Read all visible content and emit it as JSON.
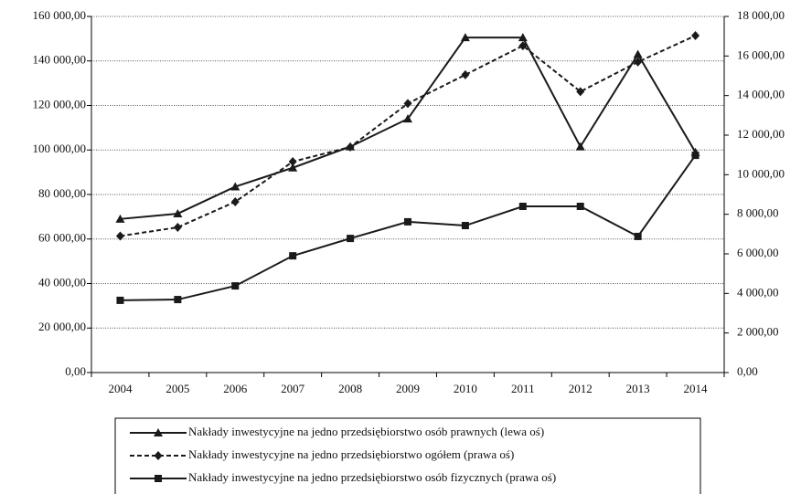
{
  "chart_data": {
    "type": "line",
    "x": [
      "2004",
      "2005",
      "2006",
      "2007",
      "2008",
      "2009",
      "2010",
      "2011",
      "2012",
      "2013",
      "2014"
    ],
    "series": [
      {
        "name": "Nakłady inwestycyjne na jedno przedsiębiorstwo osób prawnych (lewa oś)",
        "color": "#1a1a1a",
        "marker": "triangle",
        "line_style": "solid",
        "axis": "y",
        "values": [
          69000,
          71400,
          83500,
          92000,
          101500,
          114000,
          150500,
          150500,
          101500,
          143000,
          99000
        ]
      },
      {
        "name": "Nakłady inwestycyjne na jedno przedsiębiorstwo ogółem (prawa oś)",
        "color": "#1a1a1a",
        "marker": "diamond",
        "line_style": "dashed",
        "axis": "y2",
        "values": [
          6900,
          7340,
          8630,
          10660,
          11400,
          13600,
          15050,
          16520,
          14200,
          15700,
          17030
        ]
      },
      {
        "name": "Nakłady inwestycyjne na jedno przedsiębiorstwo osób fizycznych (prawa oś)",
        "color": "#1a1a1a",
        "marker": "square",
        "line_style": "solid",
        "axis": "y2",
        "values": [
          3650,
          3690,
          4380,
          5900,
          6780,
          7620,
          7430,
          8400,
          8400,
          6880,
          10980
        ]
      }
    ],
    "ylim": [
      0,
      160000
    ],
    "yticks": [
      {
        "value": 0,
        "label": "0,00"
      },
      {
        "value": 20000,
        "label": "20 000,00"
      },
      {
        "value": 40000,
        "label": "40 000,00"
      },
      {
        "value": 60000,
        "label": "60 000,00"
      },
      {
        "value": 80000,
        "label": "80 000,00"
      },
      {
        "value": 100000,
        "label": "100 000,00"
      },
      {
        "value": 120000,
        "label": "120 000,00"
      },
      {
        "value": 140000,
        "label": "140 000,00"
      },
      {
        "value": 160000,
        "label": "160 000,00"
      }
    ],
    "y2lim": [
      0,
      18000
    ],
    "y2ticks": [
      {
        "value": 0,
        "label": "0,00"
      },
      {
        "value": 2000,
        "label": "2 000,00"
      },
      {
        "value": 4000,
        "label": "4 000,00"
      },
      {
        "value": 6000,
        "label": "6 000,00"
      },
      {
        "value": 8000,
        "label": "8 000,00"
      },
      {
        "value": 10000,
        "label": "10 000,00"
      },
      {
        "value": 12000,
        "label": "12 000,00"
      },
      {
        "value": 14000,
        "label": "14 000,00"
      },
      {
        "value": 16000,
        "label": "16 000,00"
      },
      {
        "value": 18000,
        "label": "18 000,00"
      }
    ],
    "grid": true,
    "legend": "bottom"
  }
}
